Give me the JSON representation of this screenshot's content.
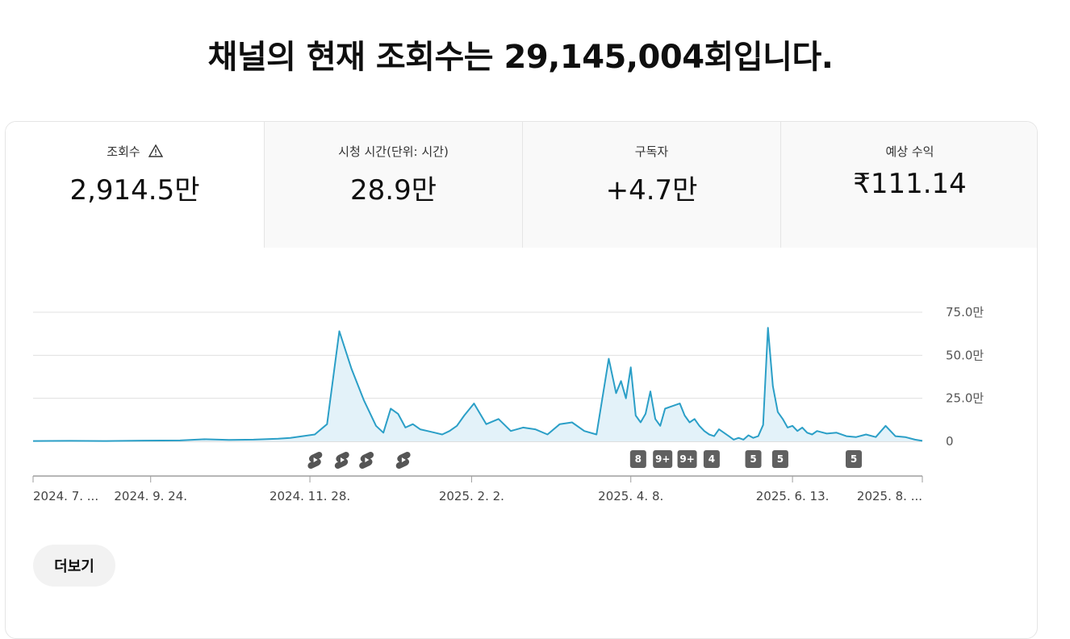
{
  "headline": "채널의 현재 조회수는 29,145,004회입니다.",
  "tabs": [
    {
      "label": "조회수",
      "value": "2,914.5만",
      "active": true,
      "icon": "warning-icon"
    },
    {
      "label": "시청 시간(단위: 시간)",
      "value": "28.9만",
      "active": false
    },
    {
      "label": "구독자",
      "value": "+4.7만",
      "active": false
    },
    {
      "label": "예상 수익",
      "value": "₹111.14",
      "active": false
    }
  ],
  "more_button": "더보기",
  "colors": {
    "line": "#2b9fc7",
    "fill": "#e3f2f9",
    "grid": "#e0e0e0",
    "badge": "#606060"
  },
  "chart_data": {
    "type": "area",
    "y_tick_labels": [
      "75.0만",
      "50.0만",
      "25.0만",
      "0"
    ],
    "y_ticks": [
      750000,
      500000,
      250000,
      0
    ],
    "ylim": [
      0,
      750000
    ],
    "x_tick_labels": [
      "2024. 7. ...",
      "2024. 9. 24.",
      "2024. 11. 28.",
      "2025. 2. 2.",
      "2025. 4. 8.",
      "2025. 6. 13.",
      "2025. 8. ..."
    ],
    "x_tick_days": [
      0,
      48,
      113,
      179,
      244,
      310,
      363
    ],
    "grid": true,
    "series": [
      {
        "day": [
          0,
          15,
          30,
          45,
          60,
          70,
          80,
          90,
          100,
          105,
          110,
          115,
          120,
          125,
          130,
          135,
          140,
          143,
          146,
          149,
          152,
          155,
          158,
          161,
          164,
          167,
          170,
          173,
          176,
          180,
          185,
          190,
          195,
          200,
          205,
          210,
          215,
          220,
          225,
          230,
          235,
          238,
          240,
          242,
          244,
          246,
          248,
          250,
          252,
          254,
          256,
          258,
          260,
          262,
          264,
          266,
          268,
          270,
          272,
          274,
          276,
          278,
          280,
          282,
          284,
          286,
          288,
          290,
          292,
          294,
          296,
          298,
          300,
          302,
          304,
          306,
          308,
          310,
          312,
          314,
          316,
          318,
          320,
          324,
          328,
          332,
          336,
          340,
          344,
          348,
          352,
          356,
          360,
          363
        ],
        "value": [
          2000,
          3000,
          2000,
          4000,
          5000,
          12000,
          8000,
          10000,
          15000,
          20000,
          30000,
          40000,
          100000,
          640000,
          420000,
          240000,
          90000,
          50000,
          190000,
          160000,
          80000,
          100000,
          70000,
          60000,
          50000,
          40000,
          60000,
          90000,
          150000,
          220000,
          100000,
          130000,
          60000,
          80000,
          70000,
          40000,
          100000,
          110000,
          60000,
          40000,
          480000,
          280000,
          350000,
          250000,
          430000,
          150000,
          110000,
          160000,
          290000,
          130000,
          90000,
          190000,
          200000,
          210000,
          220000,
          150000,
          110000,
          130000,
          90000,
          60000,
          40000,
          30000,
          70000,
          50000,
          30000,
          10000,
          20000,
          10000,
          35000,
          20000,
          30000,
          95000,
          660000,
          320000,
          170000,
          130000,
          80000,
          90000,
          60000,
          80000,
          50000,
          40000,
          60000,
          45000,
          50000,
          30000,
          25000,
          40000,
          25000,
          90000,
          30000,
          25000,
          10000,
          3000
        ]
      }
    ],
    "shorts_markers_days": [
      115,
      126,
      136,
      151
    ],
    "badges": [
      {
        "day": 247,
        "label": "8"
      },
      {
        "day": 257,
        "label": "9+"
      },
      {
        "day": 267,
        "label": "9+"
      },
      {
        "day": 277,
        "label": "4"
      },
      {
        "day": 294,
        "label": "5"
      },
      {
        "day": 305,
        "label": "5"
      },
      {
        "day": 335,
        "label": "5"
      }
    ]
  }
}
